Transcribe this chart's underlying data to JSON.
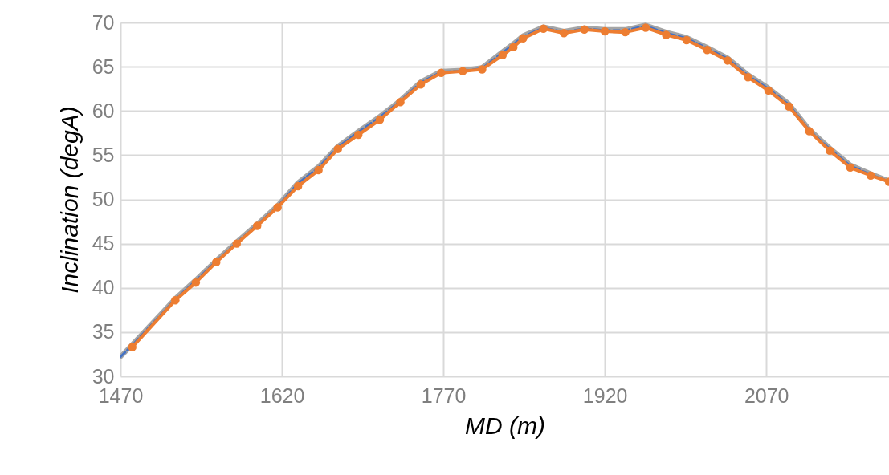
{
  "chart_data": {
    "type": "line",
    "xlabel": "MD (m)",
    "ylabel": "Inclination (degA)",
    "xlim": [
      1470,
      2184
    ],
    "xticks": [
      1470,
      1620,
      1770,
      1920,
      2070
    ],
    "ylim": [
      30,
      70
    ],
    "yticks": [
      30,
      35,
      40,
      45,
      50,
      55,
      60,
      65,
      70
    ],
    "grid": true,
    "series": [
      {
        "color": "#a5a5a5",
        "marker": "none",
        "line_style": "solid",
        "x": [
          1470,
          1481,
          1521,
          1540,
          1559,
          1578,
          1597,
          1616,
          1635,
          1654,
          1672,
          1691,
          1711,
          1730,
          1749,
          1768,
          1788,
          1806,
          1825,
          1835,
          1844,
          1863,
          1882,
          1901,
          1920,
          1939,
          1958,
          1977,
          1996,
          2015,
          2034,
          2053,
          2072,
          2091,
          2110,
          2129,
          2148,
          2167,
          2184
        ],
        "values": [
          32.2,
          33.6,
          38.8,
          40.9,
          43.1,
          45.2,
          47.2,
          49.3,
          51.9,
          53.7,
          56.0,
          57.7,
          59.4,
          61.2,
          63.3,
          64.5,
          64.6,
          64.9,
          66.7,
          67.6,
          68.5,
          69.5,
          69.0,
          69.4,
          69.2,
          69.2,
          69.7,
          68.9,
          68.3,
          67.2,
          66.0,
          64.1,
          62.6,
          60.8,
          57.9,
          55.8,
          53.9,
          52.9,
          52.1
        ]
      },
      {
        "color": "#4472c4",
        "marker": "none",
        "line_style": "dashed",
        "x": [
          1470,
          1481,
          1521,
          1540,
          1559,
          1578,
          1597,
          1616,
          1635,
          1654,
          1672,
          1691,
          1711,
          1730,
          1749,
          1768,
          1788,
          1806,
          1825,
          1835,
          1844,
          1863,
          1882,
          1901,
          1920,
          1939,
          1958,
          1977,
          1996,
          2015,
          2034,
          2053,
          2072,
          2091,
          2110,
          2129,
          2148,
          2167,
          2184
        ],
        "values": [
          32.2,
          33.5,
          38.7,
          40.8,
          43.0,
          45.1,
          47.1,
          49.2,
          51.8,
          53.6,
          55.9,
          57.6,
          59.3,
          61.1,
          63.2,
          64.4,
          64.5,
          64.8,
          66.6,
          67.5,
          68.4,
          69.4,
          68.9,
          69.3,
          69.1,
          69.1,
          69.6,
          68.8,
          68.2,
          67.1,
          65.9,
          64.0,
          62.5,
          60.7,
          57.8,
          55.7,
          53.8,
          52.8,
          52.0
        ]
      },
      {
        "color": "#ed7d31",
        "marker": "circle",
        "line_style": "solid",
        "x": [
          1481,
          1521,
          1540,
          1559,
          1578,
          1597,
          1616,
          1635,
          1654,
          1672,
          1691,
          1711,
          1730,
          1749,
          1768,
          1788,
          1806,
          1825,
          1835,
          1844,
          1863,
          1882,
          1901,
          1920,
          1939,
          1958,
          1977,
          1996,
          2015,
          2034,
          2053,
          2072,
          2091,
          2110,
          2129,
          2148,
          2167,
          2184
        ],
        "values": [
          33.3,
          38.6,
          40.6,
          42.9,
          45.0,
          47.0,
          49.1,
          51.5,
          53.3,
          55.7,
          57.3,
          59.0,
          61.0,
          63.0,
          64.3,
          64.5,
          64.7,
          66.3,
          67.2,
          68.2,
          69.3,
          68.8,
          69.2,
          69.0,
          68.9,
          69.4,
          68.6,
          68.0,
          66.9,
          65.7,
          63.8,
          62.3,
          60.5,
          57.7,
          55.5,
          53.6,
          52.7,
          52.0
        ]
      }
    ]
  }
}
